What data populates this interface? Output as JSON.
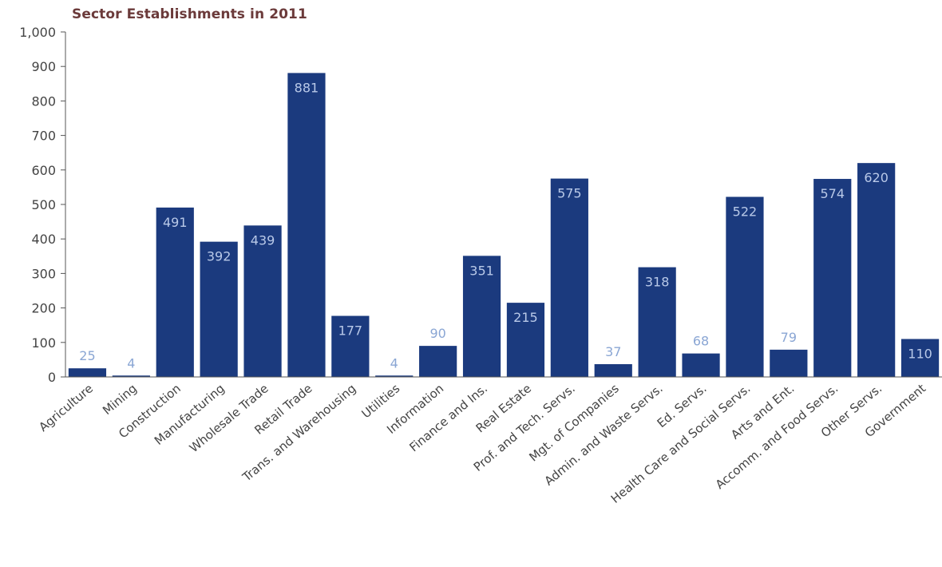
{
  "chart_data": {
    "type": "bar",
    "title": "Sector Establishments in 2011",
    "xlabel": "",
    "ylabel": "",
    "ylim": [
      0,
      1000
    ],
    "yticks": [
      "0",
      "100",
      "200",
      "300",
      "400",
      "500",
      "600",
      "700",
      "800",
      "900",
      "1,000"
    ],
    "grid": false,
    "legend": "none",
    "bar_color": "#1b3a7e",
    "label_color_inside": "#b9c9e8",
    "label_color_outside": "#8aa6d4",
    "categories": [
      "Agriculture",
      "Mining",
      "Construction",
      "Manufacturing",
      "Wholesale Trade",
      "Retail Trade",
      "Trans. and Warehousing",
      "Utilities",
      "Information",
      "Finance and Ins.",
      "Real Estate",
      "Prof. and Tech. Servs.",
      "Mgt. of Companies",
      "Admin. and Waste Servs.",
      "Ed. Servs.",
      "Health Care and Social Servs.",
      "Arts and Ent.",
      "Accomm. and Food Servs.",
      "Other Servs.",
      "Government"
    ],
    "values": [
      25,
      4,
      491,
      392,
      439,
      881,
      177,
      4,
      90,
      351,
      215,
      575,
      37,
      318,
      68,
      522,
      79,
      574,
      620,
      110
    ]
  }
}
